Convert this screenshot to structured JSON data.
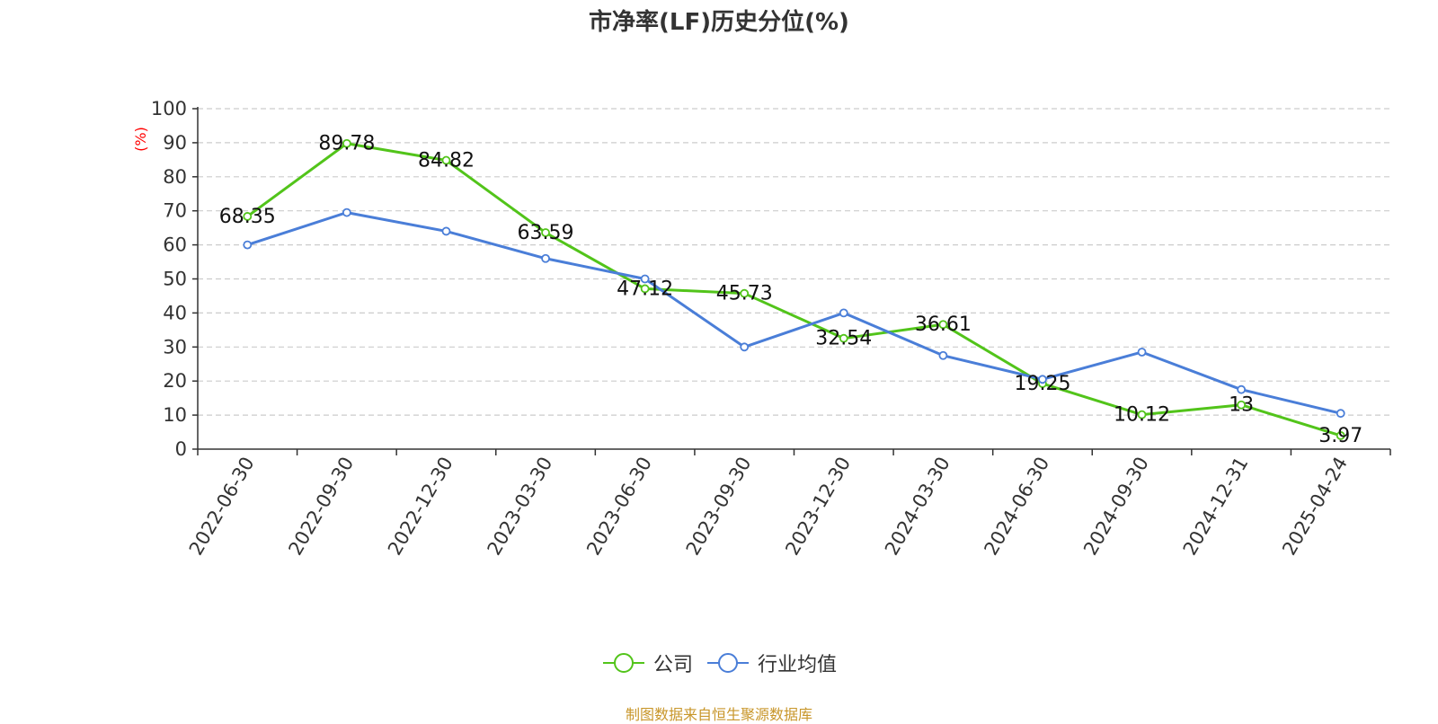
{
  "title": "市净率(LF)历史分位(%)",
  "source_note": "制图数据来自恒生聚源数据库",
  "colors": {
    "company": "#52c41a",
    "industry": "#4a7ed8",
    "ylabel": "#ff0000",
    "source": "#c8962a",
    "grid": "#cccccc",
    "axis": "#333333"
  },
  "chart_data": {
    "type": "line",
    "title": "市净率(LF)历史分位(%)",
    "xlabel": "",
    "ylabel": "(%)",
    "ylim": [
      0,
      100
    ],
    "yticks": [
      0,
      10,
      20,
      30,
      40,
      50,
      60,
      70,
      80,
      90,
      100
    ],
    "grid": true,
    "legend_position": "bottom-center",
    "categories": [
      "2022-06-30",
      "2022-09-30",
      "2022-12-30",
      "2023-03-30",
      "2023-06-30",
      "2023-09-30",
      "2023-12-30",
      "2024-03-30",
      "2024-06-30",
      "2024-09-30",
      "2024-12-31",
      "2025-04-24"
    ],
    "series": [
      {
        "name": "公司",
        "color": "#52c41a",
        "values": [
          68.35,
          89.78,
          84.82,
          63.59,
          47.12,
          45.73,
          32.54,
          36.61,
          19.25,
          10.12,
          13,
          3.97
        ],
        "labels": [
          "68.35",
          "89.78",
          "84.82",
          "63.59",
          "47.12",
          "45.73",
          "32.54",
          "36.61",
          "19.25",
          "10.12",
          "13",
          "3.97"
        ]
      },
      {
        "name": "行业均值",
        "color": "#4a7ed8",
        "values": [
          60,
          69.5,
          64,
          56,
          50,
          30,
          40,
          27.5,
          20.5,
          28.5,
          17.5,
          10.5
        ]
      }
    ]
  }
}
